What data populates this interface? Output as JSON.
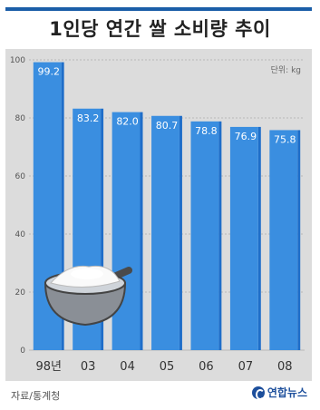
{
  "title": "1인당 연간 쌀 소비량 추이",
  "source": "자료/통계청",
  "logo_text": "연합뉴스",
  "chart_data": {
    "type": "bar",
    "title": "1인당 연간 쌀 소비량 추이",
    "unit_label": "단위: kg",
    "categories": [
      "98년",
      "03",
      "04",
      "05",
      "06",
      "07",
      "08"
    ],
    "values": [
      99.2,
      83.2,
      82.0,
      80.7,
      78.8,
      76.9,
      75.8
    ],
    "value_labels": [
      "99.2",
      "83.2",
      "82.0",
      "80.7",
      "78.8",
      "76.9",
      "75.8"
    ],
    "yticks": [
      0,
      20,
      40,
      60,
      80,
      100
    ],
    "ylim": [
      0,
      100
    ],
    "grid": true,
    "legend": "none",
    "bar_color": "#3a8ee0",
    "bar_color_dark": "#1f6ec9",
    "label_color": "#ffffff"
  }
}
